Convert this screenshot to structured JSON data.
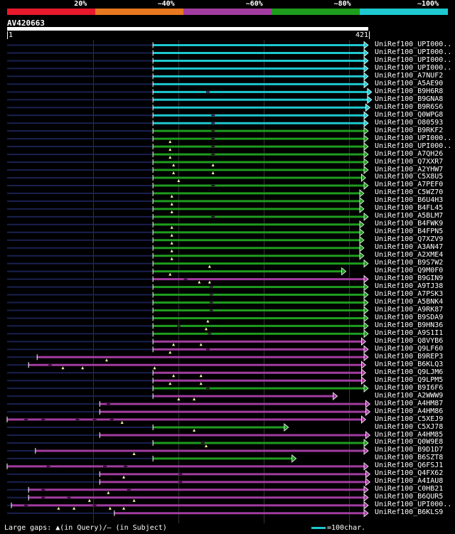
{
  "legend": {
    "segments": [
      {
        "label": "20%",
        "color": "#e8192c"
      },
      {
        "label": "~40%",
        "color": "#e87820"
      },
      {
        "label": "~60%",
        "color": "#a23ca0"
      },
      {
        "label": "~80%",
        "color": "#1e9c1e"
      },
      {
        "label": "~100%",
        "color": "#1ec8d0"
      }
    ]
  },
  "query": {
    "name": "AV420663",
    "start_label": "1",
    "end_label": "421",
    "length": 421
  },
  "footer": {
    "gaps_text": "Large gaps: ▲(in Query)/– (in Subject)",
    "scale_text": "=100char."
  },
  "colors": {
    "cyan": "#1ec8d0",
    "green": "#1e9c1e",
    "purple": "#a23ca0",
    "dim": "#1a2050"
  },
  "hits": [
    {
      "name": "UniRef100_UPI000..",
      "color": "cyan",
      "start": 170,
      "end": 421,
      "arrow": true,
      "gaps": [],
      "sgaps": []
    },
    {
      "name": "UniRef100_UPI000..",
      "color": "cyan",
      "start": 170,
      "end": 421,
      "arrow": true,
      "gaps": [],
      "sgaps": []
    },
    {
      "name": "UniRef100_UPI000..",
      "color": "cyan",
      "start": 170,
      "end": 421,
      "arrow": true,
      "gaps": [],
      "sgaps": []
    },
    {
      "name": "UniRef100_UPI000..",
      "color": "cyan",
      "start": 170,
      "end": 421,
      "arrow": true,
      "gaps": [],
      "sgaps": []
    },
    {
      "name": "UniRef100_A7NUF2",
      "color": "cyan",
      "start": 170,
      "end": 421,
      "arrow": true,
      "gaps": [],
      "sgaps": []
    },
    {
      "name": "UniRef100_A5AE90",
      "color": "cyan",
      "start": 170,
      "end": 421,
      "arrow": true,
      "gaps": [],
      "sgaps": []
    },
    {
      "name": "UniRef100_B9H6R8",
      "color": "cyan",
      "start": 170,
      "end": 425,
      "arrow": true,
      "gaps": [],
      "sgaps": [
        232
      ]
    },
    {
      "name": "UniRef100_B9GNA8",
      "color": "cyan",
      "start": 170,
      "end": 425,
      "arrow": true,
      "gaps": [],
      "sgaps": []
    },
    {
      "name": "UniRef100_B9R6S6",
      "color": "cyan",
      "start": 170,
      "end": 423,
      "arrow": true,
      "gaps": [],
      "sgaps": []
    },
    {
      "name": "UniRef100_Q0WPG8",
      "color": "cyan",
      "start": 170,
      "end": 421,
      "arrow": true,
      "gaps": [],
      "sgaps": [
        238
      ]
    },
    {
      "name": "UniRef100_O80593",
      "color": "cyan",
      "start": 170,
      "end": 421,
      "arrow": true,
      "gaps": [],
      "sgaps": [
        238
      ]
    },
    {
      "name": "UniRef100_B9RKF2",
      "color": "green",
      "start": 170,
      "end": 421,
      "arrow": true,
      "gaps": [],
      "sgaps": [
        238
      ]
    },
    {
      "name": "UniRef100_UPI000..",
      "color": "green",
      "start": 170,
      "end": 421,
      "arrow": true,
      "gaps": [
        190
      ],
      "sgaps": [
        238
      ]
    },
    {
      "name": "UniRef100_UPI000..",
      "color": "green",
      "start": 170,
      "end": 421,
      "arrow": true,
      "gaps": [
        190
      ],
      "sgaps": [
        238
      ]
    },
    {
      "name": "UniRef100_A7QH26",
      "color": "green",
      "start": 170,
      "end": 421,
      "arrow": true,
      "gaps": [
        190
      ],
      "sgaps": [
        238
      ]
    },
    {
      "name": "UniRef100_Q7XXR7",
      "color": "green",
      "start": 170,
      "end": 421,
      "arrow": true,
      "gaps": [
        194,
        240
      ],
      "sgaps": []
    },
    {
      "name": "UniRef100_A2YHW7",
      "color": "green",
      "start": 170,
      "end": 421,
      "arrow": true,
      "gaps": [
        194,
        240
      ],
      "sgaps": []
    },
    {
      "name": "UniRef100_C5X8U5",
      "color": "green",
      "start": 170,
      "end": 418,
      "arrow": true,
      "gaps": [
        200
      ],
      "sgaps": []
    },
    {
      "name": "UniRef100_A7PEF0",
      "color": "green",
      "start": 170,
      "end": 421,
      "arrow": true,
      "gaps": [],
      "sgaps": [
        238
      ]
    },
    {
      "name": "UniRef100_C5WZ70",
      "color": "green",
      "start": 170,
      "end": 416,
      "arrow": true,
      "gaps": [
        192
      ],
      "sgaps": []
    },
    {
      "name": "UniRef100_B6U4H3",
      "color": "green",
      "start": 170,
      "end": 416,
      "arrow": true,
      "gaps": [
        192
      ],
      "sgaps": []
    },
    {
      "name": "UniRef100_B4FL45",
      "color": "green",
      "start": 170,
      "end": 416,
      "arrow": true,
      "gaps": [
        192
      ],
      "sgaps": []
    },
    {
      "name": "UniRef100_A5BLM7",
      "color": "green",
      "start": 170,
      "end": 421,
      "arrow": true,
      "gaps": [],
      "sgaps": [
        238
      ]
    },
    {
      "name": "UniRef100_B4FWK9",
      "color": "green",
      "start": 170,
      "end": 416,
      "arrow": true,
      "gaps": [
        192
      ],
      "sgaps": []
    },
    {
      "name": "UniRef100_B4FPN5",
      "color": "green",
      "start": 170,
      "end": 416,
      "arrow": true,
      "gaps": [
        192
      ],
      "sgaps": []
    },
    {
      "name": "UniRef100_Q7XZV9",
      "color": "green",
      "start": 170,
      "end": 416,
      "arrow": true,
      "gaps": [
        192
      ],
      "sgaps": []
    },
    {
      "name": "UniRef100_A3AN47",
      "color": "green",
      "start": 170,
      "end": 416,
      "arrow": true,
      "gaps": [
        192
      ],
      "sgaps": []
    },
    {
      "name": "UniRef100_A2XME4",
      "color": "green",
      "start": 170,
      "end": 416,
      "arrow": true,
      "gaps": [
        192
      ],
      "sgaps": []
    },
    {
      "name": "UniRef100_B9S7W2",
      "color": "green",
      "start": 170,
      "end": 421,
      "arrow": true,
      "gaps": [
        236
      ],
      "sgaps": []
    },
    {
      "name": "UniRef100_Q9M0F0",
      "color": "green",
      "start": 170,
      "end": 395,
      "arrow": true,
      "gaps": [
        190
      ],
      "sgaps": []
    },
    {
      "name": "UniRef100_B9GIN9",
      "color": "purple",
      "start": 170,
      "end": 421,
      "arrow": true,
      "gaps": [
        224,
        236
      ],
      "sgaps": [
        206
      ]
    },
    {
      "name": "UniRef100_A9TJ38",
      "color": "green",
      "start": 170,
      "end": 421,
      "arrow": true,
      "gaps": [],
      "sgaps": [
        236
      ]
    },
    {
      "name": "UniRef100_A7PSK3",
      "color": "green",
      "start": 170,
      "end": 421,
      "arrow": true,
      "gaps": [],
      "sgaps": [
        236
      ]
    },
    {
      "name": "UniRef100_A5BNK4",
      "color": "green",
      "start": 170,
      "end": 421,
      "arrow": true,
      "gaps": [],
      "sgaps": [
        236
      ]
    },
    {
      "name": "UniRef100_A9RK87",
      "color": "green",
      "start": 170,
      "end": 421,
      "arrow": true,
      "gaps": [],
      "sgaps": [
        236
      ]
    },
    {
      "name": "UniRef100_B9SDA9",
      "color": "green",
      "start": 170,
      "end": 421,
      "arrow": true,
      "gaps": [
        234
      ],
      "sgaps": []
    },
    {
      "name": "UniRef100_B9HN36",
      "color": "green",
      "start": 170,
      "end": 421,
      "arrow": true,
      "gaps": [
        232
      ],
      "sgaps": [
        198
      ]
    },
    {
      "name": "UniRef100_A9S1I1",
      "color": "green",
      "start": 170,
      "end": 421,
      "arrow": true,
      "gaps": [],
      "sgaps": [
        234
      ]
    },
    {
      "name": "UniRef100_Q8VYB6",
      "color": "purple",
      "start": 170,
      "end": 418,
      "arrow": true,
      "gaps": [
        194,
        226
      ],
      "sgaps": []
    },
    {
      "name": "UniRef100_Q9LF60",
      "color": "purple",
      "start": 170,
      "end": 421,
      "arrow": true,
      "gaps": [
        190
      ],
      "sgaps": [
        232
      ]
    },
    {
      "name": "UniRef100_B9REP3",
      "color": "purple",
      "start": 35,
      "end": 421,
      "arrow": true,
      "gaps": [
        116
      ],
      "sgaps": []
    },
    {
      "name": "UniRef100_B6KLQ3",
      "color": "purple",
      "start": 25,
      "end": 418,
      "arrow": true,
      "gaps": [
        65,
        88,
        172
      ],
      "sgaps": [
        48
      ]
    },
    {
      "name": "UniRef100_Q9LJM6",
      "color": "purple",
      "start": 170,
      "end": 418,
      "arrow": true,
      "gaps": [
        194,
        226
      ],
      "sgaps": []
    },
    {
      "name": "UniRef100_Q9LPM5",
      "color": "purple",
      "start": 170,
      "end": 418,
      "arrow": true,
      "gaps": [
        190,
        226
      ],
      "sgaps": []
    },
    {
      "name": "UniRef100_B9I6F6",
      "color": "green",
      "start": 170,
      "end": 421,
      "arrow": true,
      "gaps": [],
      "sgaps": [
        232
      ]
    },
    {
      "name": "UniRef100_A2WWW9",
      "color": "purple",
      "start": 170,
      "end": 385,
      "arrow": true,
      "gaps": [
        200,
        218
      ],
      "sgaps": []
    },
    {
      "name": "UniRef100_A4HM87",
      "color": "purple",
      "start": 108,
      "end": 423,
      "arrow": true,
      "gaps": [],
      "sgaps": [
        116
      ]
    },
    {
      "name": "UniRef100_A4HM86",
      "color": "purple",
      "start": 108,
      "end": 423,
      "arrow": true,
      "gaps": [],
      "sgaps": []
    },
    {
      "name": "UniRef100_C5XEJ9",
      "color": "purple",
      "start": 0,
      "end": 418,
      "arrow": true,
      "gaps": [
        134
      ],
      "sgaps": [
        20,
        40,
        80,
        100,
        120
      ]
    },
    {
      "name": "UniRef100_C5XJ78",
      "color": "green",
      "start": 170,
      "end": 328,
      "arrow": true,
      "gaps": [
        218
      ],
      "sgaps": []
    },
    {
      "name": "UniRef100_A4HM85",
      "color": "purple",
      "start": 108,
      "end": 423,
      "arrow": true,
      "gaps": [],
      "sgaps": []
    },
    {
      "name": "UniRef100_Q0W9E8",
      "color": "green",
      "start": 170,
      "end": 421,
      "arrow": true,
      "gaps": [
        232
      ],
      "sgaps": [
        226
      ]
    },
    {
      "name": "UniRef100_B9D1D7",
      "color": "purple",
      "start": 33,
      "end": 421,
      "arrow": true,
      "gaps": [
        148
      ],
      "sgaps": []
    },
    {
      "name": "UniRef100_B6SZT8",
      "color": "green",
      "start": 170,
      "end": 337,
      "arrow": true,
      "gaps": [],
      "sgaps": []
    },
    {
      "name": "UniRef100_Q6FSJ1",
      "color": "purple",
      "start": 0,
      "end": 421,
      "arrow": true,
      "gaps": [],
      "sgaps": [
        46,
        112,
        136
      ]
    },
    {
      "name": "UniRef100_Q4FX62",
      "color": "purple",
      "start": 108,
      "end": 423,
      "arrow": true,
      "gaps": [
        136
      ],
      "sgaps": [
        200
      ]
    },
    {
      "name": "UniRef100_A4IAU8",
      "color": "purple",
      "start": 108,
      "end": 423,
      "arrow": true,
      "gaps": [],
      "sgaps": [
        200
      ]
    },
    {
      "name": "UniRef100_C0HB21",
      "color": "purple",
      "start": 25,
      "end": 421,
      "arrow": true,
      "gaps": [
        118
      ],
      "sgaps": [
        40,
        140
      ]
    },
    {
      "name": "UniRef100_B6QUR5",
      "color": "purple",
      "start": 25,
      "end": 421,
      "arrow": true,
      "gaps": [
        96,
        148
      ],
      "sgaps": [
        40,
        70
      ]
    },
    {
      "name": "UniRef100_UPI000..",
      "color": "purple",
      "start": 5,
      "end": 421,
      "arrow": true,
      "gaps": [
        60,
        78,
        120,
        136
      ],
      "sgaps": [
        20,
        100
      ]
    },
    {
      "name": "UniRef100_B6KLS9",
      "color": "purple",
      "start": 125,
      "end": 421,
      "arrow": true,
      "gaps": [],
      "sgaps": []
    }
  ]
}
